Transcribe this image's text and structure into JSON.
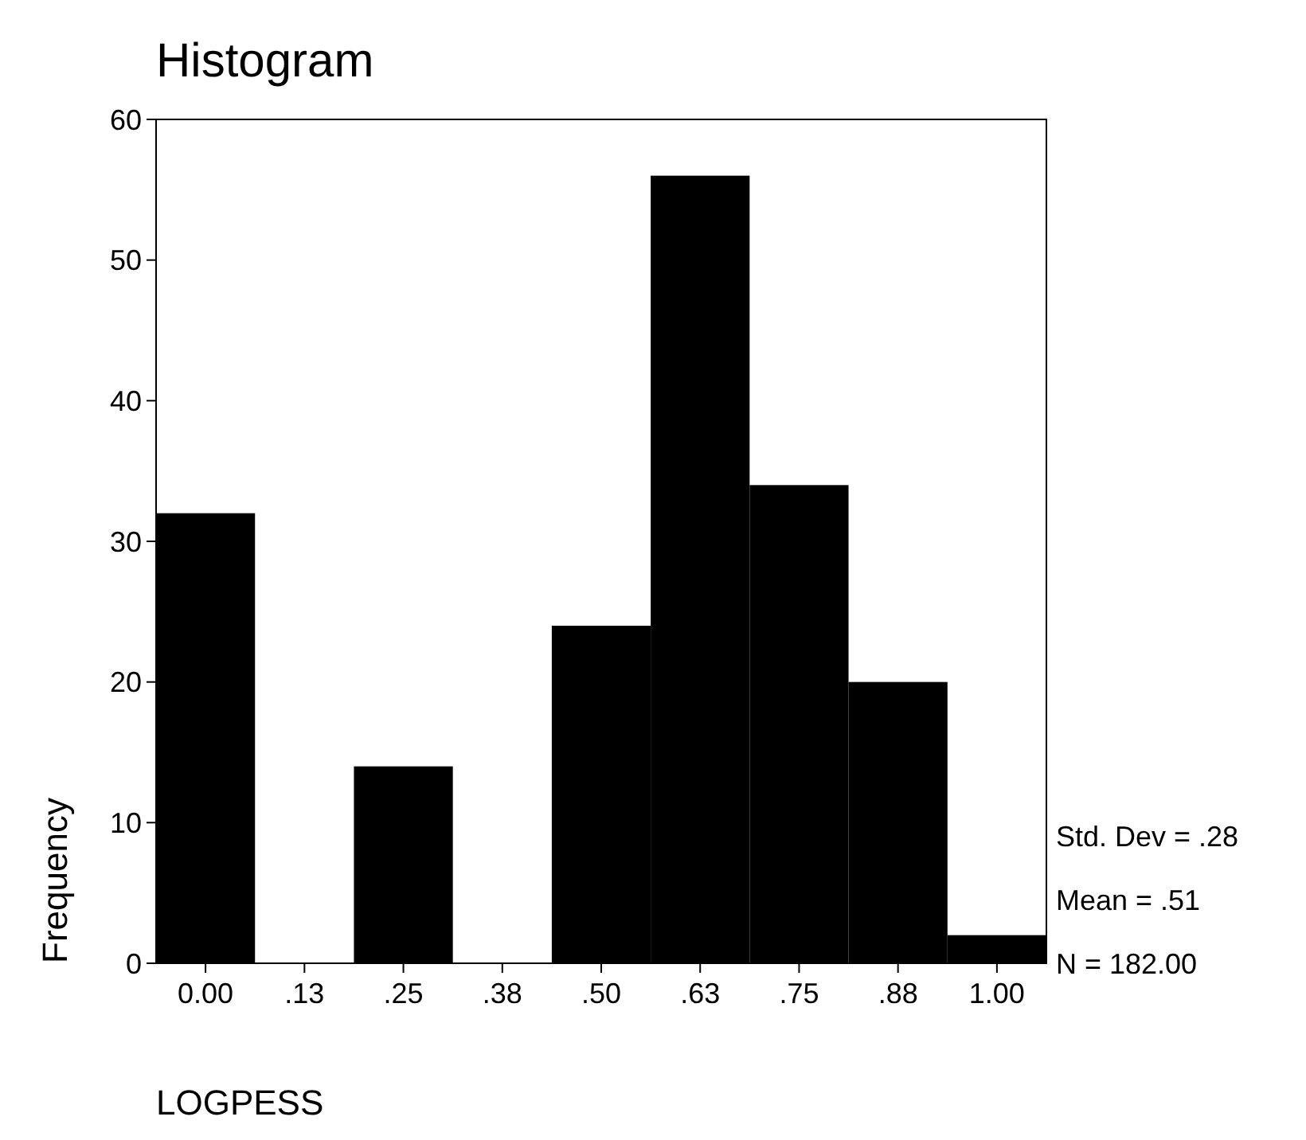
{
  "chart_data": {
    "type": "histogram",
    "title": "Histogram",
    "xlabel": "LOGPESS",
    "ylabel": "Frequency",
    "bins": [
      -0.0625,
      0.0625,
      0.1875,
      0.3125,
      0.4375,
      0.5625,
      0.6875,
      0.8125,
      0.9375,
      1.0625
    ],
    "values": [
      32,
      0,
      14,
      0,
      24,
      56,
      34,
      20,
      2
    ],
    "color": "#000000",
    "xlim": [
      -0.0625,
      1.0625
    ],
    "xticks": [
      {
        "value": 0,
        "label": "0.00"
      },
      {
        "value": 0.125,
        "label": ".13"
      },
      {
        "value": 0.25,
        "label": ".25"
      },
      {
        "value": 0.375,
        "label": ".38"
      },
      {
        "value": 0.5,
        "label": ".50"
      },
      {
        "value": 0.625,
        "label": ".63"
      },
      {
        "value": 0.75,
        "label": ".75"
      },
      {
        "value": 0.875,
        "label": ".88"
      },
      {
        "value": 1,
        "label": "1.00"
      }
    ],
    "ylim": [
      0,
      60
    ],
    "yticks": [
      0,
      10,
      20,
      30,
      40,
      50,
      60
    ],
    "grid": false,
    "annotations": [
      "Std. Dev = .28",
      "Mean = .51",
      "N = 182.00"
    ]
  }
}
